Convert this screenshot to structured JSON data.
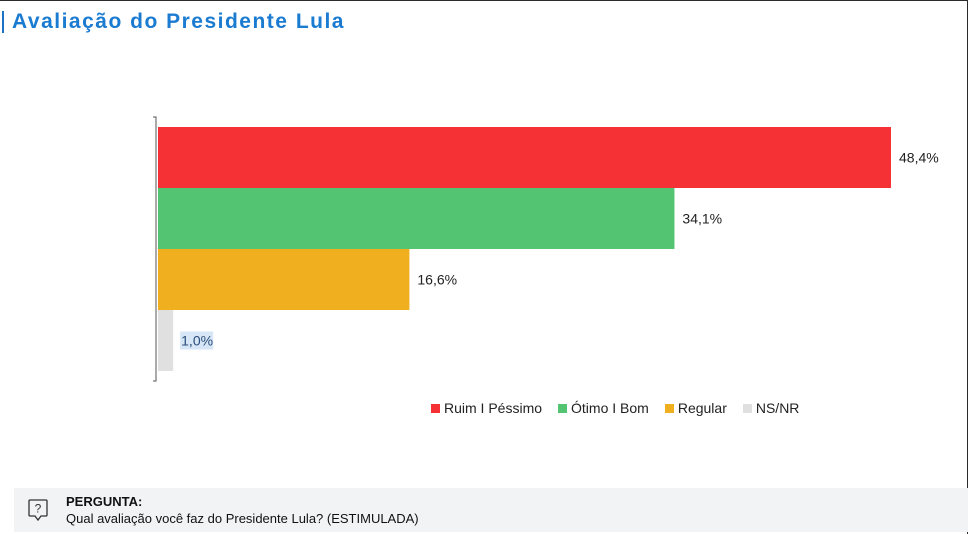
{
  "header": {
    "title": "Avaliação do Presidente Lula"
  },
  "chart_data": {
    "type": "bar",
    "orientation": "horizontal",
    "categories": [
      "Ruim I Péssimo",
      "Ótimo I Bom",
      "Regular",
      "NS/NR"
    ],
    "values": [
      48.4,
      34.1,
      16.6,
      1.0
    ],
    "value_labels": [
      "48,4%",
      "34,1%",
      "16,6%",
      "1,0%"
    ],
    "colors": [
      "#f53135",
      "#52c472",
      "#f0af1f",
      "#e0e0e0"
    ],
    "xlim": [
      0,
      50
    ],
    "title": "Avaliação do Presidente Lula",
    "legend_position": "bottom",
    "grid": false
  },
  "legend": {
    "items": [
      {
        "label": "Ruim I Péssimo",
        "color": "#f53135"
      },
      {
        "label": "Ótimo I Bom",
        "color": "#52c472"
      },
      {
        "label": "Regular",
        "color": "#f0af1f"
      },
      {
        "label": "NS/NR",
        "color": "#e0e0e0"
      }
    ]
  },
  "question": {
    "label": "PERGUNTA:",
    "text": "Qual avaliação você faz do Presidente Lula? (ESTIMULADA)",
    "icon": "question-bubble-icon"
  }
}
